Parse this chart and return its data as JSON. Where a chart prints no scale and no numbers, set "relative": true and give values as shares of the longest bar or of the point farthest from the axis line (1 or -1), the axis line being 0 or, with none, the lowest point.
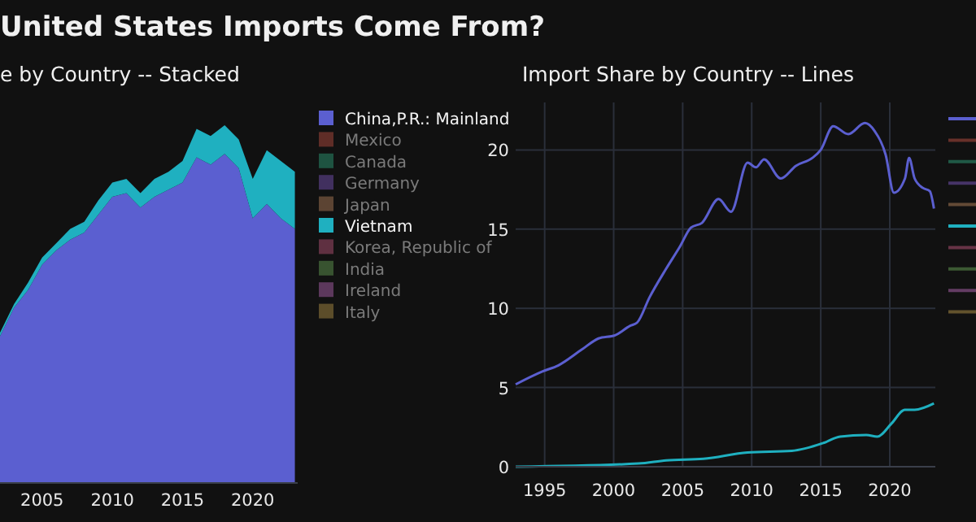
{
  "chart_data": [
    {
      "type": "area",
      "title": "United States Imports Come From?",
      "subtitle": "e by Country -- Stacked",
      "relative": true,
      "stacked": true,
      "legend": "right",
      "xlim": [
        2002,
        2023.2
      ],
      "xticks": [
        2005,
        2010,
        2015,
        2020
      ],
      "x": [
        2002,
        2003,
        2004,
        2005,
        2006,
        2007,
        2008,
        2009,
        2010,
        2011,
        2012,
        2013,
        2014,
        2015,
        2016,
        2017,
        2018,
        2019,
        2020,
        2021,
        2022,
        2023
      ],
      "series": [
        {
          "name": "China,P.R.: Mainland",
          "color": "#5b5fd0",
          "values": [
            0.41,
            0.49,
            0.54,
            0.61,
            0.65,
            0.68,
            0.7,
            0.75,
            0.8,
            0.81,
            0.77,
            0.8,
            0.82,
            0.84,
            0.91,
            0.89,
            0.92,
            0.88,
            0.74,
            0.78,
            0.74,
            0.71
          ]
        },
        {
          "name": "Mexico",
          "color": "#a0463a",
          "values": [
            null,
            null,
            null,
            null,
            null,
            null,
            null,
            null,
            null,
            null,
            null,
            null,
            null,
            null,
            null,
            null,
            null,
            null,
            null,
            null,
            null,
            null
          ]
        },
        {
          "name": "Canada",
          "color": "#2a8a6a",
          "values": [
            null,
            null,
            null,
            null,
            null,
            null,
            null,
            null,
            null,
            null,
            null,
            null,
            null,
            null,
            null,
            null,
            null,
            null,
            null,
            null,
            null,
            null
          ]
        },
        {
          "name": "Germany",
          "color": "#6a4aa0",
          "values": [
            null,
            null,
            null,
            null,
            null,
            null,
            null,
            null,
            null,
            null,
            null,
            null,
            null,
            null,
            null,
            null,
            null,
            null,
            null,
            null,
            null,
            null
          ]
        },
        {
          "name": "Japan",
          "color": "#9a7050",
          "values": [
            null,
            null,
            null,
            null,
            null,
            null,
            null,
            null,
            null,
            null,
            null,
            null,
            null,
            null,
            null,
            null,
            null,
            null,
            null,
            null,
            null,
            null
          ]
        },
        {
          "name": "Vietnam",
          "color": "#1fb0c0",
          "values": [
            0.01,
            0.01,
            0.02,
            0.02,
            0.02,
            0.03,
            0.03,
            0.04,
            0.04,
            0.04,
            0.04,
            0.05,
            0.05,
            0.06,
            0.08,
            0.08,
            0.08,
            0.08,
            0.11,
            0.15,
            0.16,
            0.16
          ]
        },
        {
          "name": "Korea, Republic of",
          "color": "#a04a6a",
          "values": [
            null,
            null,
            null,
            null,
            null,
            null,
            null,
            null,
            null,
            null,
            null,
            null,
            null,
            null,
            null,
            null,
            null,
            null,
            null,
            null,
            null,
            null
          ]
        },
        {
          "name": "India",
          "color": "#5a8a4a",
          "values": [
            null,
            null,
            null,
            null,
            null,
            null,
            null,
            null,
            null,
            null,
            null,
            null,
            null,
            null,
            null,
            null,
            null,
            null,
            null,
            null,
            null,
            null
          ]
        },
        {
          "name": "Ireland",
          "color": "#9a5a9a",
          "values": [
            null,
            null,
            null,
            null,
            null,
            null,
            null,
            null,
            null,
            null,
            null,
            null,
            null,
            null,
            null,
            null,
            null,
            null,
            null,
            null,
            null,
            null
          ]
        },
        {
          "name": "Italy",
          "color": "#9a8040",
          "values": [
            null,
            null,
            null,
            null,
            null,
            null,
            null,
            null,
            null,
            null,
            null,
            null,
            null,
            null,
            null,
            null,
            null,
            null,
            null,
            null,
            null,
            null
          ]
        }
      ]
    },
    {
      "type": "line",
      "title": "Import Share by Country -- Lines",
      "grid": true,
      "legend": "right",
      "xlim": [
        1992.9,
        2023.3
      ],
      "ylim": [
        0,
        23
      ],
      "xticks": [
        1995,
        2000,
        2005,
        2010,
        2015,
        2020
      ],
      "yticks": [
        0,
        5,
        10,
        15,
        20
      ],
      "series": [
        {
          "color": "#5b5fd0",
          "x": [
            1992.9,
            1994.8,
            1996,
            1997.7,
            1998.9,
            2000.1,
            2001.2,
            2001.7,
            2002.6,
            2003.8,
            2004.8,
            2005.6,
            2006.4,
            2007.6,
            2008.5,
            2009.7,
            2010.3,
            2010.9,
            2012.1,
            2013.2,
            2014.4,
            2015,
            2015.9,
            2017,
            2018.2,
            2018.9,
            2019.7,
            2020.3,
            2021.1,
            2021.4,
            2021.8,
            2022.4,
            2022.9,
            2023.2
          ],
          "values": [
            5.2,
            6.0,
            6.4,
            7.4,
            8.1,
            8.3,
            8.9,
            9.1,
            10.7,
            12.5,
            13.9,
            15.1,
            15.4,
            16.9,
            16.1,
            19.2,
            18.9,
            19.4,
            18.2,
            19.0,
            19.5,
            20.0,
            21.5,
            21.0,
            21.7,
            21.2,
            19.7,
            17.3,
            18.2,
            19.5,
            18.2,
            17.6,
            17.4,
            16.3
          ]
        },
        {
          "color": "#a0463a",
          "values": [
            null
          ]
        },
        {
          "color": "#2a8a6a",
          "values": [
            null
          ]
        },
        {
          "color": "#6a4aa0",
          "values": [
            null
          ]
        },
        {
          "color": "#9a7050",
          "values": [
            null
          ]
        },
        {
          "color": "#1fb0c0",
          "x": [
            1992.9,
            2001.8,
            2003.8,
            2006.5,
            2009.7,
            2012.9,
            2015.2,
            2016.4,
            2018.3,
            2019.1,
            2020.1,
            2021.1,
            2021.8,
            2023.2
          ],
          "values": [
            0,
            0.2,
            0.4,
            0.5,
            0.9,
            1.0,
            1.5,
            1.9,
            2.0,
            1.9,
            2.7,
            3.6,
            3.6,
            4.0
          ]
        },
        {
          "color": "#a04a6a",
          "values": [
            null
          ]
        },
        {
          "color": "#5a8a4a",
          "values": [
            null
          ]
        },
        {
          "color": "#9a5a9a",
          "values": [
            null
          ]
        },
        {
          "color": "#9a8040",
          "values": [
            null
          ]
        }
      ]
    }
  ]
}
